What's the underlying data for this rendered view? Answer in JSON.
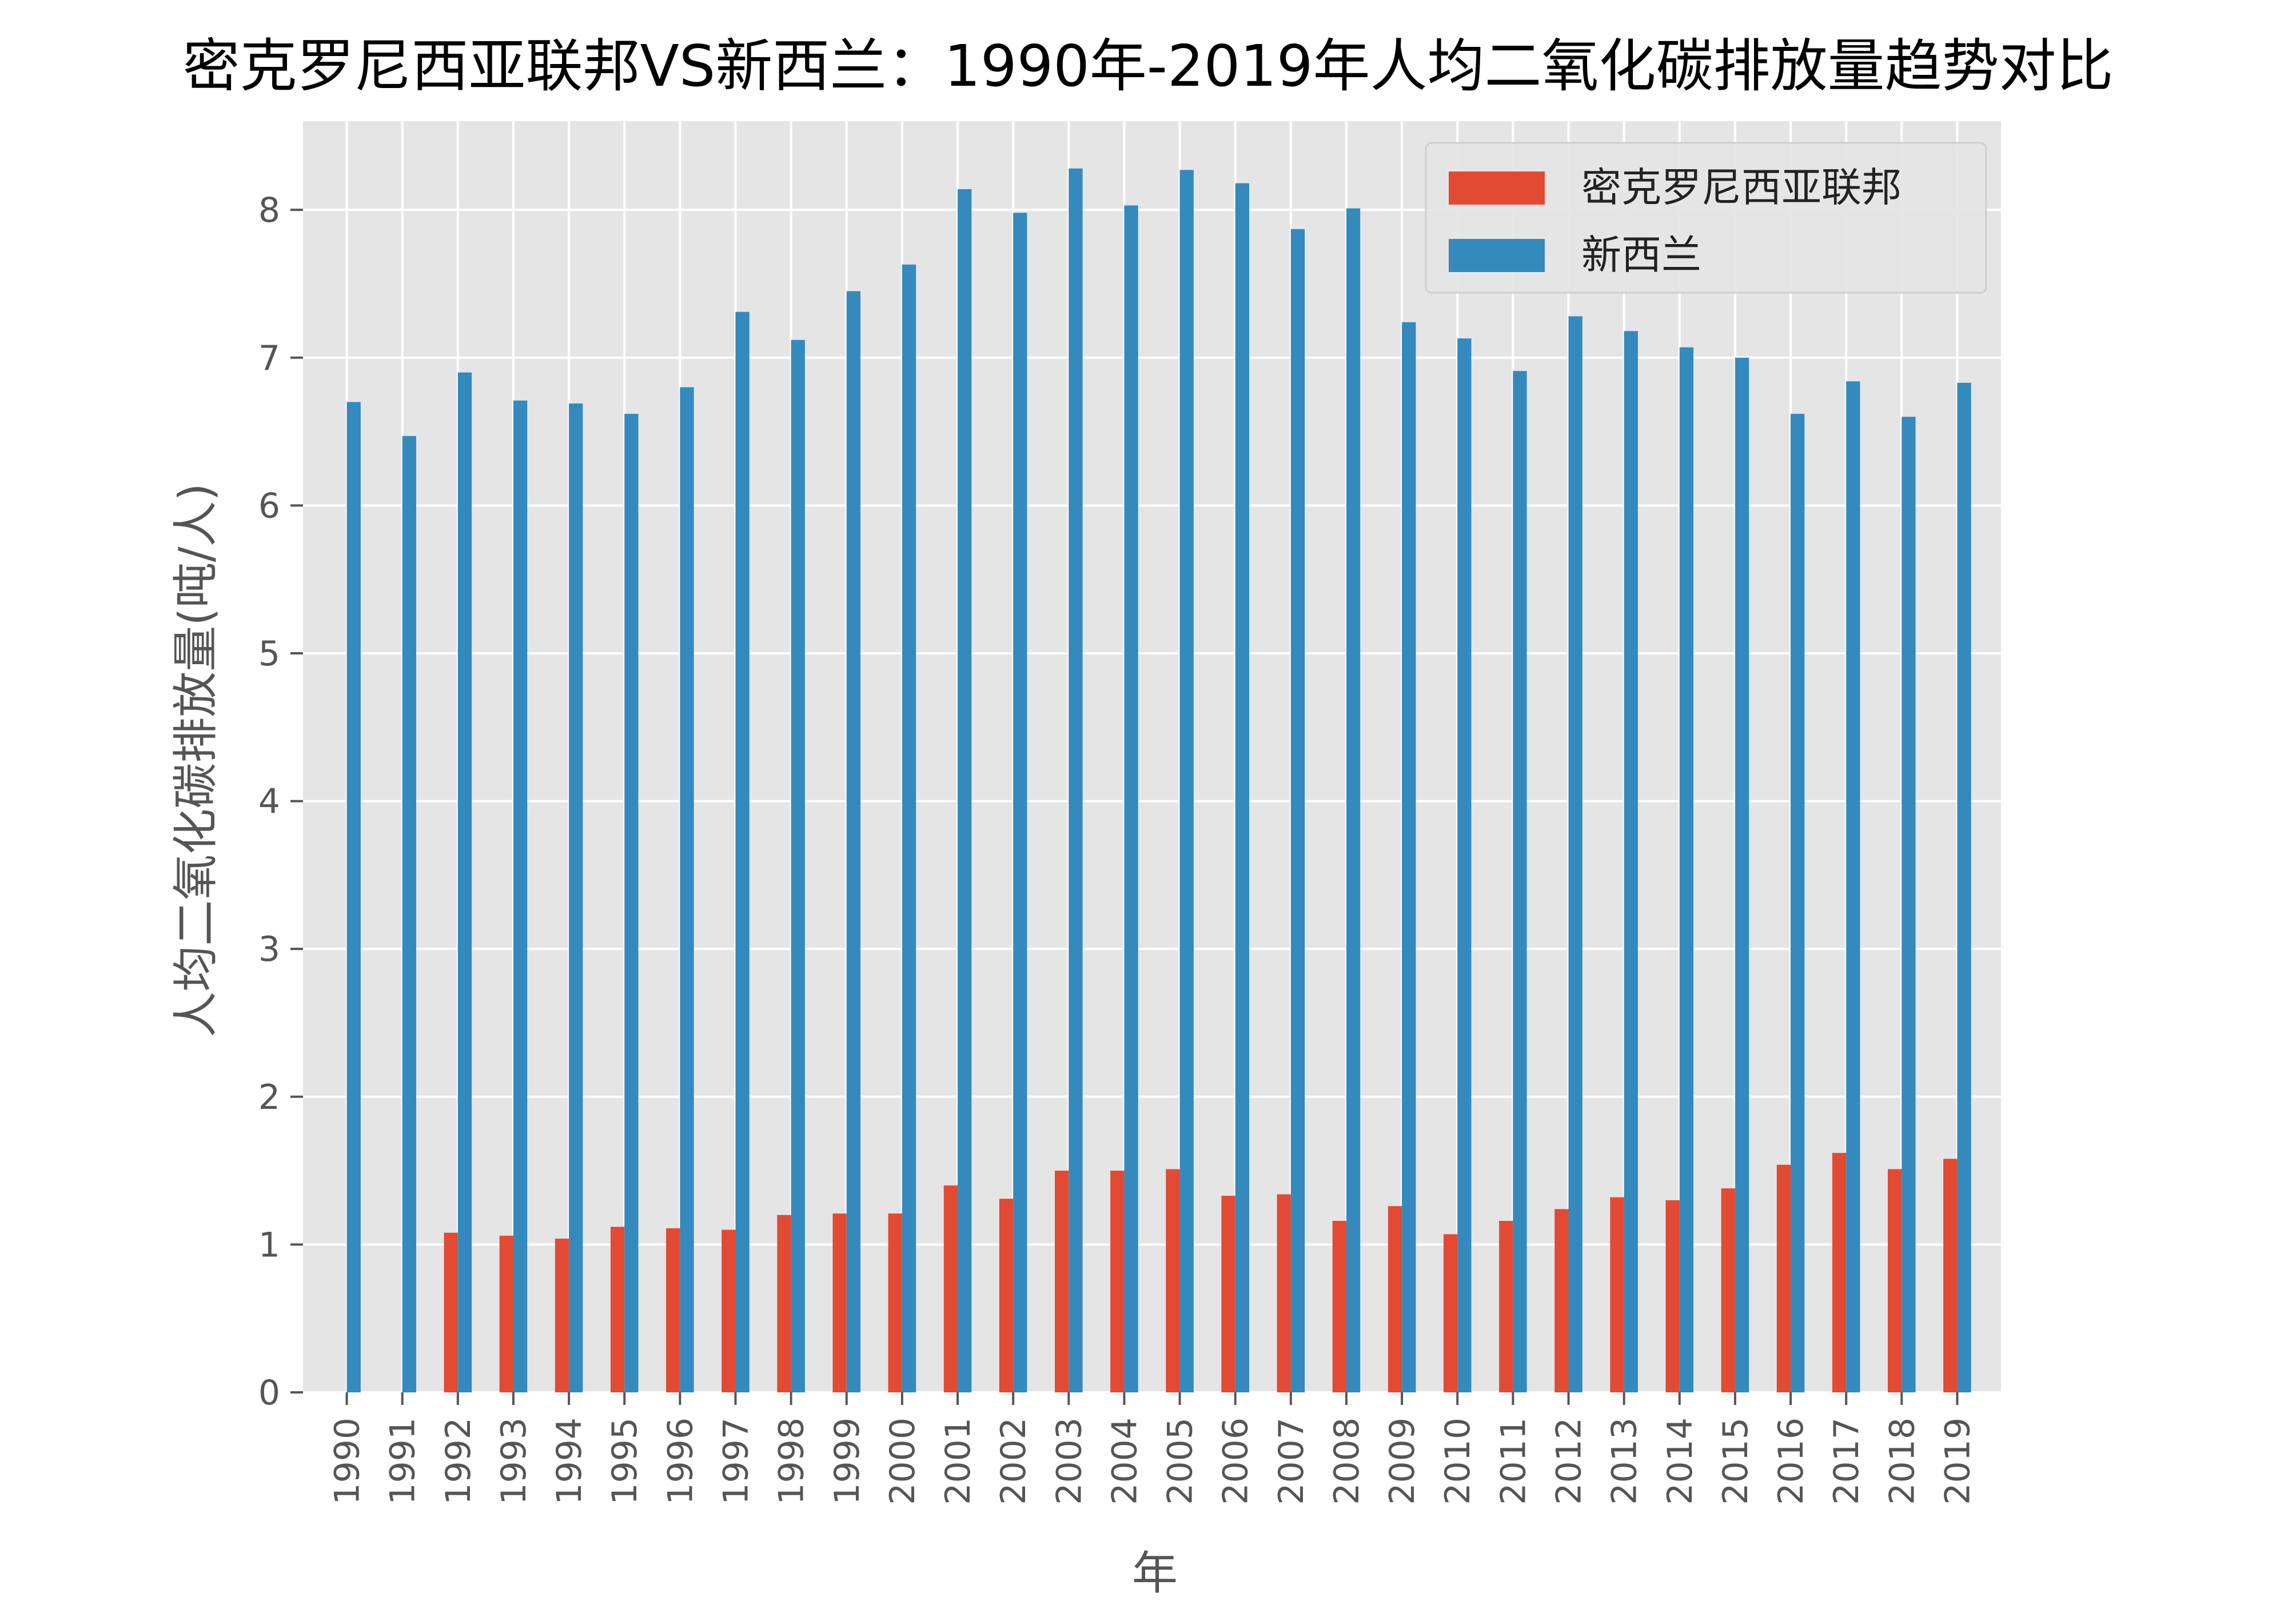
{
  "chart_data": {
    "type": "bar",
    "title": "密克罗尼西亚联邦VS新西兰：1990年-2019年人均二氧化碳排放量趋势对比",
    "xlabel": "年",
    "ylabel": "人均二氧化碳排放量(吨/人)",
    "ylim": [
      0,
      8.6
    ],
    "yticks": [
      "0",
      "1",
      "2",
      "3",
      "4",
      "5",
      "6",
      "7",
      "8"
    ],
    "grid": true,
    "legend_position": "top-right",
    "categories": [
      "1990",
      "1991",
      "1992",
      "1993",
      "1994",
      "1995",
      "1996",
      "1997",
      "1998",
      "1999",
      "2000",
      "2001",
      "2002",
      "2003",
      "2004",
      "2005",
      "2006",
      "2007",
      "2008",
      "2009",
      "2010",
      "2011",
      "2012",
      "2013",
      "2014",
      "2015",
      "2016",
      "2017",
      "2018",
      "2019"
    ],
    "series": [
      {
        "name": "密克罗尼西亚联邦",
        "color": "#e24a33",
        "values": [
          null,
          null,
          1.08,
          1.06,
          1.04,
          1.12,
          1.11,
          1.1,
          1.2,
          1.21,
          1.21,
          1.4,
          1.31,
          1.5,
          1.5,
          1.51,
          1.33,
          1.34,
          1.16,
          1.26,
          1.07,
          1.16,
          1.24,
          1.32,
          1.3,
          1.38,
          1.54,
          1.62,
          1.51,
          1.58
        ]
      },
      {
        "name": "新西兰",
        "color": "#348abd",
        "values": [
          6.7,
          6.47,
          6.9,
          6.71,
          6.69,
          6.62,
          6.8,
          7.31,
          7.12,
          7.45,
          7.63,
          8.14,
          7.98,
          8.28,
          8.03,
          8.27,
          8.18,
          7.87,
          8.01,
          7.24,
          7.13,
          6.91,
          7.28,
          7.18,
          7.07,
          7.0,
          6.62,
          6.84,
          6.6,
          6.83
        ]
      }
    ]
  }
}
